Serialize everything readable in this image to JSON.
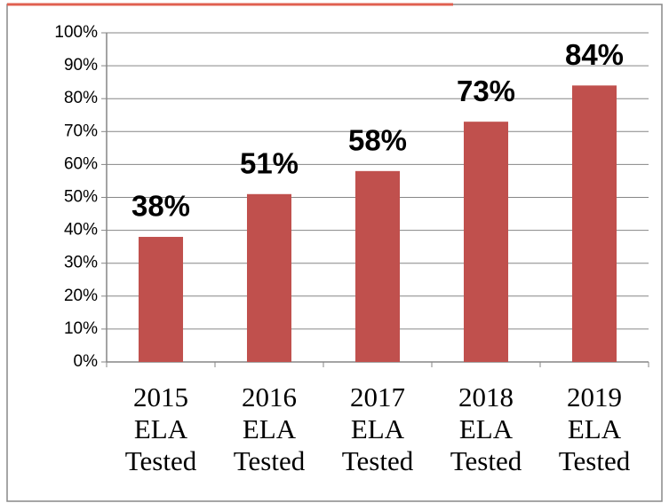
{
  "chart_data": {
    "type": "bar",
    "categories": [
      "2015 ELA Tested",
      "2016 ELA Tested",
      "2017 ELA Tested",
      "2018 ELA Tested",
      "2019 ELA Tested"
    ],
    "values": [
      38,
      51,
      58,
      73,
      84
    ],
    "value_labels": [
      "38%",
      "51%",
      "58%",
      "73%",
      "84%"
    ],
    "color": "#c0504d",
    "ylim": [
      0,
      100
    ],
    "yticks": [
      {
        "value": 0,
        "label": "0%"
      },
      {
        "value": 10,
        "label": "10%"
      },
      {
        "value": 20,
        "label": "20%"
      },
      {
        "value": 30,
        "label": "30%"
      },
      {
        "value": 40,
        "label": "40%"
      },
      {
        "value": 50,
        "label": "50%"
      },
      {
        "value": 60,
        "label": "60%"
      },
      {
        "value": 70,
        "label": "70%"
      },
      {
        "value": 80,
        "label": "80%"
      },
      {
        "value": 90,
        "label": "90%"
      },
      {
        "value": 100,
        "label": "100%"
      }
    ],
    "grid": true
  }
}
